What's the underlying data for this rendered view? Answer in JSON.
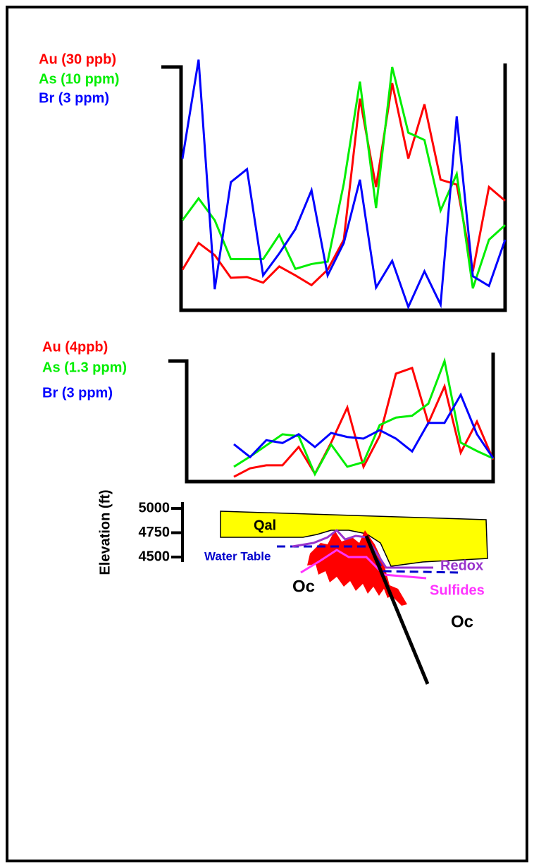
{
  "chart_data": [
    {
      "type": "line",
      "series": [
        {
          "name": "Au (30 ppb)",
          "color": "#ff0000",
          "ylim": [
            0,
            30
          ],
          "values": [
            5.0,
            8.3,
            6.8,
            4.0,
            4.1,
            3.4,
            5.4,
            4.3,
            3.1,
            5.0,
            8.7,
            26.1,
            15.2,
            28.0,
            18.7,
            25.4,
            16.1,
            15.5,
            4.8,
            15.2,
            13.5
          ]
        },
        {
          "name": "As (10 ppm)",
          "color": "#00ee00",
          "ylim": [
            0,
            10
          ],
          "values": [
            3.7,
            4.6,
            3.7,
            2.1,
            2.1,
            2.1,
            3.1,
            1.7,
            1.9,
            2.0,
            5.2,
            9.4,
            4.2,
            10.0,
            7.3,
            7.0,
            4.1,
            5.6,
            0.9,
            2.9,
            3.5
          ]
        },
        {
          "name": "Br (3 ppm)",
          "color": "#0000ff",
          "ylim": [
            0,
            3
          ],
          "values": [
            1.87,
            3.09,
            0.26,
            1.58,
            1.74,
            0.43,
            0.7,
            1.0,
            1.48,
            0.43,
            0.83,
            1.61,
            0.28,
            0.61,
            0.04,
            0.48,
            0.07,
            2.39,
            0.42,
            0.3,
            0.87
          ]
        }
      ]
    },
    {
      "type": "line",
      "series": [
        {
          "name": "Au (4ppb)",
          "color": "#ff0000",
          "ylim": [
            0,
            4
          ],
          "values": [
            0.16,
            0.44,
            0.54,
            0.54,
            1.15,
            0.26,
            1.29,
            2.46,
            0.49,
            1.52,
            3.58,
            3.77,
            1.94,
            3.16,
            0.96,
            1.99,
            0.73
          ]
        },
        {
          "name": "As (1.3 ppm)",
          "color": "#00ee00",
          "ylim": [
            0,
            1.3
          ],
          "values": [
            0.16,
            0.27,
            0.39,
            0.51,
            0.49,
            0.08,
            0.4,
            0.16,
            0.21,
            0.61,
            0.69,
            0.71,
            0.84,
            1.3,
            0.42,
            0.33,
            0.25
          ]
        },
        {
          "name": "Br (3 ppm)",
          "color": "#0000ff",
          "ylim": [
            0,
            3
          ],
          "values": [
            0.93,
            0.61,
            1.03,
            0.96,
            1.18,
            0.86,
            1.21,
            1.11,
            1.07,
            1.28,
            1.07,
            0.75,
            1.46,
            1.46,
            2.16,
            1.18,
            0.58
          ]
        }
      ]
    },
    {
      "type": "section",
      "ylabel": "Elevation (ft)",
      "ylim": [
        4500,
        5000
      ],
      "yticks": [
        4500,
        4750,
        5000
      ],
      "annotations": [
        "Qal",
        "Water Table",
        "Redox",
        "Sulfides",
        "Oc",
        "Oc"
      ]
    }
  ]
}
